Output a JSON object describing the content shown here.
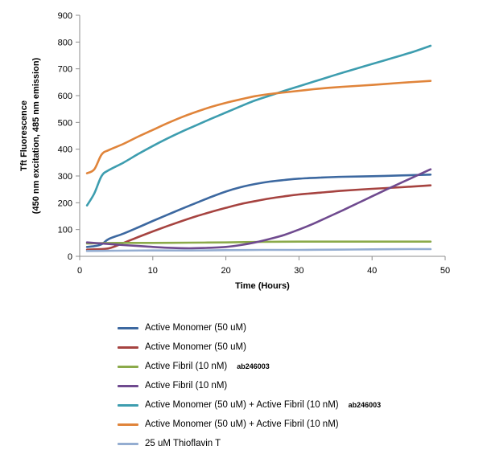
{
  "chart_data": {
    "type": "line",
    "xlabel": "Time (Hours)",
    "ylabel_line1": "Tft Fluorescence",
    "ylabel_line2": "(450 nm excitation, 485 nm emission)",
    "xlim": [
      0,
      50
    ],
    "ylim": [
      0,
      900
    ],
    "xticks": [
      0,
      10,
      20,
      30,
      40,
      50
    ],
    "yticks": [
      0,
      100,
      200,
      300,
      400,
      500,
      600,
      700,
      800,
      900
    ],
    "grid": false,
    "legend_position": "bottom",
    "series": [
      {
        "name": "Active Monomer (50 uM)",
        "note": "",
        "color": "#3C68A0",
        "points": [
          [
            1,
            35
          ],
          [
            2,
            38
          ],
          [
            3,
            45
          ],
          [
            4,
            65
          ],
          [
            6,
            85
          ],
          [
            8,
            108
          ],
          [
            10,
            132
          ],
          [
            12,
            155
          ],
          [
            14,
            178
          ],
          [
            16,
            200
          ],
          [
            18,
            222
          ],
          [
            20,
            242
          ],
          [
            22,
            258
          ],
          [
            24,
            270
          ],
          [
            26,
            279
          ],
          [
            28,
            285
          ],
          [
            30,
            290
          ],
          [
            33,
            294
          ],
          [
            36,
            297
          ],
          [
            40,
            299
          ],
          [
            44,
            302
          ],
          [
            48,
            305
          ]
        ]
      },
      {
        "name": "Active Monomer (50 uM)",
        "note": "",
        "color": "#A64340",
        "points": [
          [
            1,
            25
          ],
          [
            2,
            26
          ],
          [
            4,
            30
          ],
          [
            6,
            50
          ],
          [
            8,
            72
          ],
          [
            10,
            93
          ],
          [
            12,
            113
          ],
          [
            14,
            132
          ],
          [
            16,
            150
          ],
          [
            18,
            166
          ],
          [
            20,
            181
          ],
          [
            22,
            195
          ],
          [
            24,
            206
          ],
          [
            26,
            216
          ],
          [
            28,
            224
          ],
          [
            30,
            231
          ],
          [
            33,
            238
          ],
          [
            36,
            245
          ],
          [
            40,
            252
          ],
          [
            44,
            258
          ],
          [
            48,
            265
          ]
        ]
      },
      {
        "name": "Active Fibril (10 nM)",
        "note": "ab246003",
        "color": "#8BAA4A",
        "points": [
          [
            1,
            48
          ],
          [
            5,
            50
          ],
          [
            10,
            50
          ],
          [
            15,
            51
          ],
          [
            20,
            52
          ],
          [
            25,
            54
          ],
          [
            30,
            55
          ],
          [
            35,
            55
          ],
          [
            40,
            55
          ],
          [
            45,
            55
          ],
          [
            48,
            55
          ]
        ]
      },
      {
        "name": "Active Fibril (10 nM)",
        "note": "",
        "color": "#6F4A8F",
        "points": [
          [
            1,
            52
          ],
          [
            3,
            48
          ],
          [
            6,
            42
          ],
          [
            9,
            37
          ],
          [
            12,
            32
          ],
          [
            15,
            30
          ],
          [
            18,
            32
          ],
          [
            20,
            35
          ],
          [
            22,
            42
          ],
          [
            24,
            52
          ],
          [
            26,
            65
          ],
          [
            28,
            80
          ],
          [
            30,
            100
          ],
          [
            32,
            122
          ],
          [
            34,
            147
          ],
          [
            36,
            172
          ],
          [
            38,
            198
          ],
          [
            40,
            224
          ],
          [
            42,
            250
          ],
          [
            44,
            275
          ],
          [
            46,
            300
          ],
          [
            48,
            325
          ]
        ]
      },
      {
        "name": "Active Monomer (50 uM) + Active Fibril (10 nM)",
        "note": "ab246003",
        "color": "#3D9DAF",
        "points": [
          [
            1,
            190
          ],
          [
            2,
            235
          ],
          [
            3,
            300
          ],
          [
            4,
            322
          ],
          [
            6,
            350
          ],
          [
            8,
            382
          ],
          [
            10,
            412
          ],
          [
            12,
            440
          ],
          [
            14,
            466
          ],
          [
            16,
            490
          ],
          [
            18,
            514
          ],
          [
            20,
            537
          ],
          [
            22,
            560
          ],
          [
            24,
            582
          ],
          [
            26,
            600
          ],
          [
            28,
            618
          ],
          [
            30,
            635
          ],
          [
            32,
            652
          ],
          [
            34,
            669
          ],
          [
            36,
            686
          ],
          [
            38,
            702
          ],
          [
            40,
            718
          ],
          [
            42,
            734
          ],
          [
            44,
            750
          ],
          [
            46,
            767
          ],
          [
            48,
            786
          ]
        ]
      },
      {
        "name": "Active Monomer (50 uM) + Active Fibril (10 nM)",
        "note": "",
        "color": "#E0843A",
        "points": [
          [
            1,
            310
          ],
          [
            2,
            325
          ],
          [
            3,
            380
          ],
          [
            4,
            397
          ],
          [
            6,
            420
          ],
          [
            8,
            447
          ],
          [
            10,
            472
          ],
          [
            12,
            497
          ],
          [
            14,
            520
          ],
          [
            16,
            540
          ],
          [
            18,
            558
          ],
          [
            20,
            573
          ],
          [
            22,
            586
          ],
          [
            24,
            598
          ],
          [
            26,
            606
          ],
          [
            28,
            612
          ],
          [
            30,
            618
          ],
          [
            32,
            624
          ],
          [
            34,
            629
          ],
          [
            36,
            633
          ],
          [
            40,
            640
          ],
          [
            44,
            648
          ],
          [
            48,
            655
          ]
        ]
      },
      {
        "name": "25 uM Thioflavin T",
        "note": "",
        "color": "#94ADD1",
        "points": [
          [
            1,
            20
          ],
          [
            5,
            21
          ],
          [
            10,
            22
          ],
          [
            15,
            22
          ],
          [
            20,
            23
          ],
          [
            25,
            24
          ],
          [
            30,
            24
          ],
          [
            35,
            25
          ],
          [
            40,
            26
          ],
          [
            45,
            27
          ],
          [
            48,
            27
          ]
        ]
      }
    ]
  }
}
